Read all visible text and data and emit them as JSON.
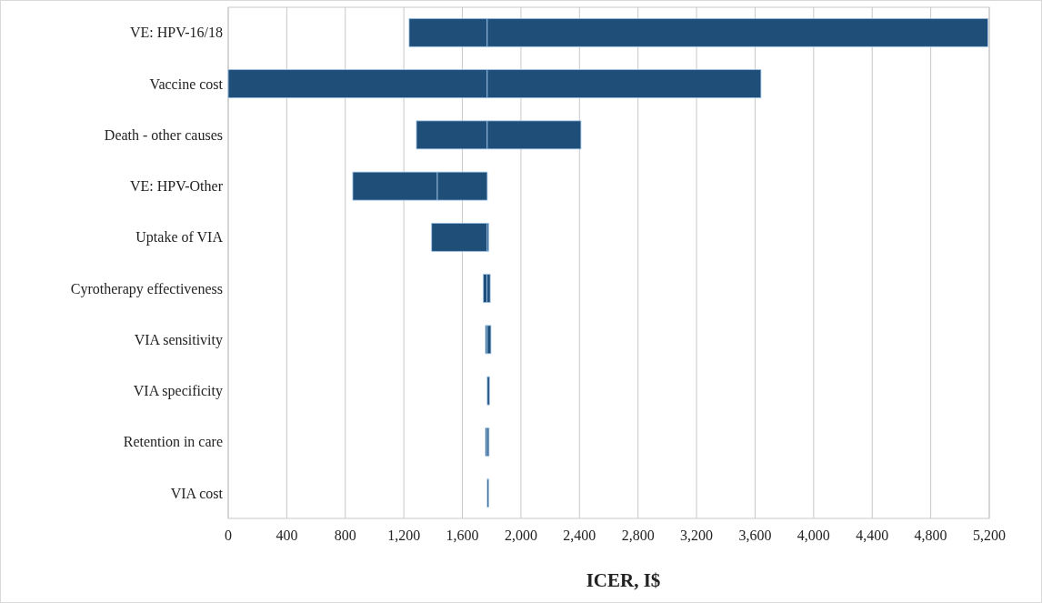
{
  "chart_data": {
    "type": "bar",
    "orientation": "horizontal",
    "stacked": false,
    "xlabel": "ICER, I$",
    "categories": [
      "VE: HPV-16/18",
      "Vaccine cost",
      "Death - other causes",
      "VE: HPV-Other",
      "Uptake of VIA",
      "Cyrotherapy effectiveness",
      "VIA sensitivity",
      "VIA specificity",
      "Retention in care",
      "VIA cost"
    ],
    "series": [
      {
        "color": "#1f4e79",
        "base": [
          1236,
          0,
          1286,
          851,
          1390,
          1743,
          1758,
          null,
          1758,
          null
        ],
        "values": [
          534,
          1770,
          484,
          578,
          380,
          25,
          12,
          null,
          12,
          null
        ]
      },
      {
        "color": "#1f4e79",
        "base": [
          1770,
          1770,
          1770,
          1429,
          1770,
          1768,
          1770,
          1770,
          1770,
          1770
        ],
        "values": [
          3420,
          1870,
          640,
          341,
          10,
          22,
          25,
          15,
          12,
          10
        ]
      }
    ],
    "xlim": [
      0,
      5200
    ],
    "xticks": [
      {
        "value": 0,
        "label": "0"
      },
      {
        "value": 400,
        "label": "400"
      },
      {
        "value": 800,
        "label": "800"
      },
      {
        "value": 1200,
        "label": "1,200"
      },
      {
        "value": 1600,
        "label": "1,600"
      },
      {
        "value": 2000,
        "label": "2,000"
      },
      {
        "value": 2400,
        "label": "2,400"
      },
      {
        "value": 2800,
        "label": "2,800"
      },
      {
        "value": 3200,
        "label": "3,200"
      },
      {
        "value": 3600,
        "label": "3,600"
      },
      {
        "value": 4000,
        "label": "4,000"
      },
      {
        "value": 4400,
        "label": "4,400"
      },
      {
        "value": 4800,
        "label": "4,800"
      },
      {
        "value": 5200,
        "label": "5,200"
      }
    ],
    "grid": "x"
  }
}
